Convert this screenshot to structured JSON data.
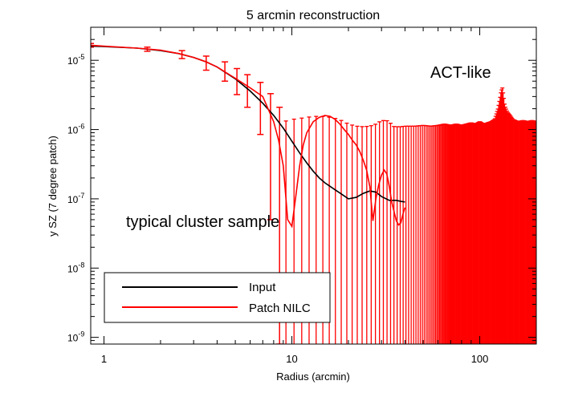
{
  "chart_data": {
    "type": "line",
    "title": "5 arcmin reconstruction",
    "xlabel": "Radius (arcmin)",
    "ylabel": "y SZ (7 degree patch)",
    "xscale": "log",
    "yscale": "log",
    "xlim": [
      0.85,
      200
    ],
    "ylim": [
      8e-10,
      3e-05
    ],
    "x_ticks": [
      1,
      10,
      100
    ],
    "x_tick_labels": [
      "1",
      "10",
      "100"
    ],
    "y_ticks": [
      1e-09,
      1e-08,
      1e-07,
      1e-06,
      1e-05
    ],
    "y_tick_labels": [
      {
        "mant": "10",
        "exp": "-9"
      },
      {
        "mant": "10",
        "exp": "-8"
      },
      {
        "mant": "10",
        "exp": "-7"
      },
      {
        "mant": "10",
        "exp": "-6"
      },
      {
        "mant": "10",
        "exp": "-5"
      }
    ],
    "annotations": [
      {
        "text": "ACT-like"
      },
      {
        "text": "typical cluster sample"
      }
    ],
    "legend": {
      "position": "bottom-left"
    },
    "colors": {
      "input": "#000000",
      "nilc": "#ff0000"
    },
    "series": [
      {
        "name": "Input",
        "x": [
          0.85,
          1,
          1.5,
          2,
          2.5,
          3,
          3.5,
          4,
          5,
          6,
          7,
          8,
          9,
          10,
          11,
          12,
          13,
          14,
          15,
          17,
          19,
          20,
          22,
          24,
          26,
          28,
          30,
          33,
          36,
          38,
          40
        ],
        "y": [
          1.6e-05,
          1.58e-05,
          1.5e-05,
          1.38e-05,
          1.25e-05,
          1.1e-05,
          9.5e-06,
          8e-06,
          5.4e-06,
          3.6e-06,
          2.4e-06,
          1.6e-06,
          1.05e-06,
          6.8e-07,
          4.6e-07,
          3.3e-07,
          2.5e-07,
          2e-07,
          1.7e-07,
          1.35e-07,
          1.1e-07,
          1e-07,
          1.05e-07,
          1.2e-07,
          1.3e-07,
          1.25e-07,
          1.08e-07,
          9.5e-08,
          9.5e-08,
          9.2e-08,
          9e-08
        ]
      },
      {
        "name": "Patch NILC",
        "x": [
          0.85,
          1,
          1.5,
          2,
          2.5,
          3,
          3.5,
          4,
          5,
          6,
          7,
          8,
          8.5,
          9,
          9.5,
          10,
          10.5,
          11,
          11.5,
          12,
          13,
          14,
          15,
          16,
          17,
          18,
          19,
          20,
          21,
          22,
          23,
          24,
          25,
          26,
          27,
          28,
          29,
          30,
          31,
          32,
          33,
          34,
          35,
          36,
          37,
          38,
          39,
          40
        ],
        "y": [
          1.65e-05,
          1.6e-05,
          1.5e-05,
          1.4e-05,
          1.25e-05,
          1.1e-05,
          9.5e-06,
          8e-06,
          5.5e-06,
          4e-06,
          3e-06,
          1.3e-06,
          7e-07,
          3e-07,
          5e-08,
          4e-08,
          1.1e-07,
          3e-07,
          6e-07,
          9e-07,
          1.3e-06,
          1.5e-06,
          1.6e-06,
          1.55e-06,
          1.4e-06,
          1.2e-06,
          1e-06,
          8.5e-07,
          7e-07,
          6e-07,
          4.8e-07,
          3.6e-07,
          2.6e-07,
          1.5e-07,
          4.8e-08,
          1e-07,
          1.6e-07,
          2.2e-07,
          2.6e-07,
          2.3e-07,
          1.5e-07,
          9e-08,
          6.5e-08,
          4.8e-08,
          4.2e-08,
          4.5e-08,
          6e-08,
          7.5e-08
        ]
      }
    ],
    "errorbars": {
      "name": "Patch NILC",
      "x": [
        0.85,
        1.7,
        2.6,
        3.5,
        4.4,
        5.1,
        5.8,
        6.8,
        7.7,
        8.6
      ],
      "y": [
        1.65e-05,
        1.45e-05,
        1.22e-05,
        9.3e-06,
        7.3e-06,
        5.4e-06,
        4e-06,
        2.8e-06,
        1.7e-06,
        8e-07
      ],
      "lo": [
        1.55e-05,
        1.35e-05,
        1.06e-05,
        7.2e-06,
        5e-06,
        3.2e-06,
        2.1e-06,
        8.5e-07,
        5e-08,
        8e-10
      ],
      "hi": [
        1.75e-05,
        1.55e-05,
        1.38e-05,
        1.15e-05,
        9.5e-06,
        7.6e-06,
        6.2e-06,
        4.8e-06,
        3.3e-06,
        2.1e-06
      ]
    },
    "upper_envelope": {
      "x": [
        9,
        10,
        11,
        12,
        13,
        14,
        15,
        16,
        17,
        18,
        19,
        20,
        22,
        24,
        26,
        28,
        30,
        32,
        34,
        35,
        36,
        38,
        40,
        45,
        50,
        55,
        60,
        65,
        70,
        75,
        80,
        85,
        90,
        95,
        100,
        105,
        110,
        115,
        120,
        125,
        128,
        130,
        132,
        134,
        136,
        140,
        145,
        150,
        160,
        170,
        180,
        190,
        200
      ],
      "y": [
        1.3e-06,
        1.4e-06,
        1.45e-06,
        1.5e-06,
        1.55e-06,
        1.55e-06,
        1.55e-06,
        1.5e-06,
        1.45e-06,
        1.38e-06,
        1.3e-06,
        1.2e-06,
        1.12e-06,
        1.1e-06,
        1.12e-06,
        1.2e-06,
        1.35e-06,
        1.35e-06,
        1.2e-06,
        1.1e-06,
        1.1e-06,
        1.1e-06,
        1.12e-06,
        1.12e-06,
        1.15e-06,
        1.12e-06,
        1.15e-06,
        1.2e-06,
        1.15e-06,
        1.2e-06,
        1.15e-06,
        1.2e-06,
        1.25e-06,
        1.2e-06,
        1.3e-06,
        1.2e-06,
        1.25e-06,
        1.3e-06,
        1.4e-06,
        2e-06,
        2.8e-06,
        3.6e-06,
        4e-06,
        3e-06,
        2.2e-06,
        1.8e-06,
        1.6e-06,
        1.4e-06,
        1.3e-06,
        1.35e-06,
        1.3e-06,
        1.35e-06,
        1.3e-06
      ]
    }
  }
}
